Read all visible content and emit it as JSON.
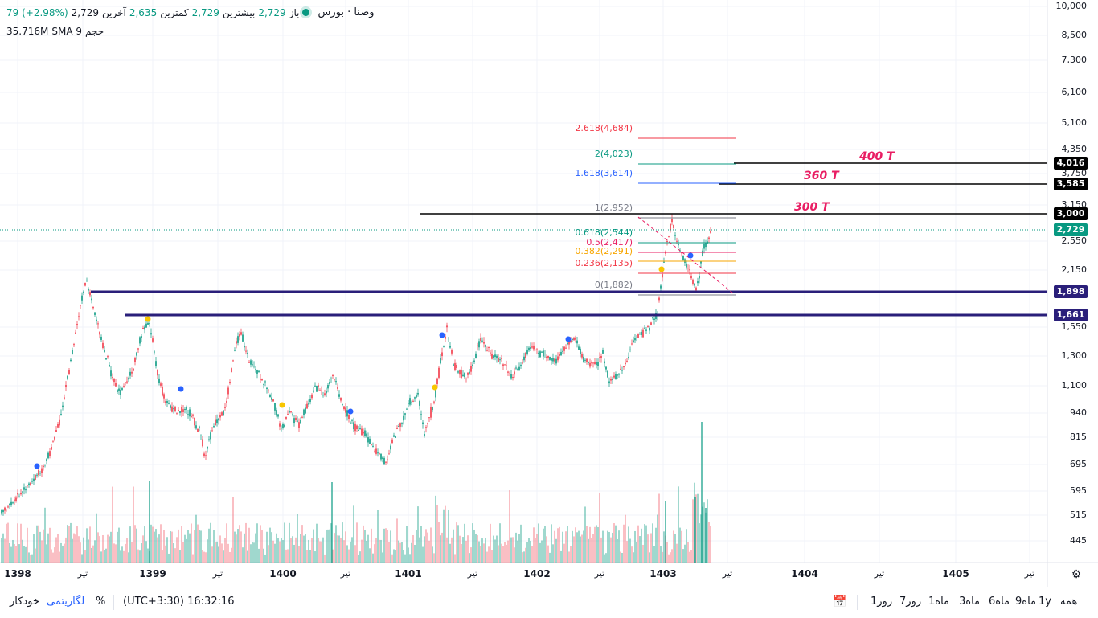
{
  "legend": {
    "symbol": "وصنا · بورس",
    "open_label": "باز",
    "open": "2,729",
    "high_label": "بیشترین",
    "high": "2,729",
    "low_label": "کمترین",
    "low": "2,635",
    "close_label": "آخرین",
    "close": "2,729",
    "change": "79 (+2.98%)",
    "volume_label": "حجم",
    "volume_ma": "SMA 9",
    "volume_value": "35.716M"
  },
  "y_axis": {
    "labels": [
      "10,000",
      "8,500",
      "7,300",
      "6,100",
      "5,100",
      "4,350",
      "3,750",
      "3,150",
      "2,550",
      "2,150",
      "1,550",
      "1,300",
      "1,100",
      "940",
      "815",
      "695",
      "595",
      "515",
      "445"
    ]
  },
  "price_badges": [
    {
      "text": "4,016",
      "color": "#000000"
    },
    {
      "text": "3,585",
      "color": "#000000"
    },
    {
      "text": "3,000",
      "color": "#000000"
    },
    {
      "text": "2,729",
      "color": "#089981"
    },
    {
      "text": "1,898",
      "color": "#2a1f7a"
    },
    {
      "text": "1,661",
      "color": "#2a1f7a"
    }
  ],
  "x_axis": {
    "labels": [
      {
        "text": "1398",
        "bold": true
      },
      {
        "text": "تیر",
        "bold": false
      },
      {
        "text": "1399",
        "bold": true
      },
      {
        "text": "تیر",
        "bold": false
      },
      {
        "text": "1400",
        "bold": true
      },
      {
        "text": "تیر",
        "bold": false
      },
      {
        "text": "1401",
        "bold": true
      },
      {
        "text": "تیر",
        "bold": false
      },
      {
        "text": "1402",
        "bold": true
      },
      {
        "text": "تیر",
        "bold": false
      },
      {
        "text": "1403",
        "bold": true
      },
      {
        "text": "تیر",
        "bold": false
      },
      {
        "text": "1404",
        "bold": true
      },
      {
        "text": "تیر",
        "bold": false
      },
      {
        "text": "1405",
        "bold": true
      },
      {
        "text": "تیر",
        "bold": false
      }
    ]
  },
  "fib_levels": [
    {
      "text": "2.618(4,684)",
      "color": "#f23645"
    },
    {
      "text": "2(4,023)",
      "color": "#089981"
    },
    {
      "text": "1.618(3,614)",
      "color": "#2962ff"
    },
    {
      "text": "1(2,952)",
      "color": "#787b86"
    },
    {
      "text": "0.618(2,544)",
      "color": "#089981"
    },
    {
      "text": "0.5(2,417)",
      "color": "#e91e63"
    },
    {
      "text": "0.382(2,291)",
      "color": "#f7a600"
    },
    {
      "text": "0.236(2,135)",
      "color": "#f23645"
    },
    {
      "text": "0(1,882)",
      "color": "#787b86"
    }
  ],
  "targets": [
    "400 T",
    "360 T",
    "300 T"
  ],
  "bottom_bar": {
    "timeframes": [
      "همه",
      "1y",
      "9ماه",
      "6ماه",
      "3ماه",
      "1ماه",
      "7روز",
      "1روز"
    ],
    "timezone": "(UTC+3:30) 16:32:16",
    "percent": "%",
    "log": "لگاریتمی",
    "auto": "خودکار"
  },
  "colors": {
    "up": "#089981",
    "down": "#f23645",
    "support": "#2a1f7a",
    "accent": "#2962ff"
  }
}
